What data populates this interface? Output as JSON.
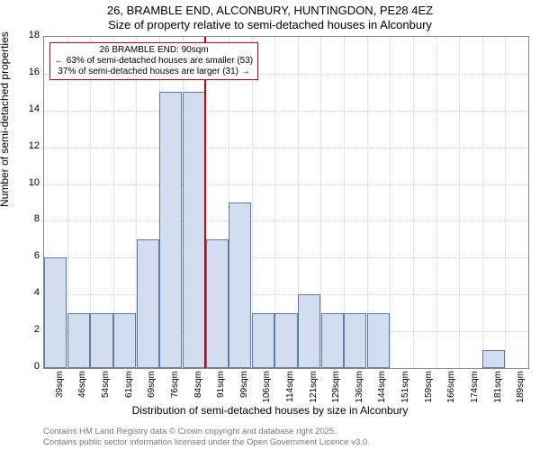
{
  "chart": {
    "type": "histogram",
    "title_main": "26, BRAMBLE END, ALCONBURY, HUNTINGDON, PE28 4EZ",
    "title_sub": "Size of property relative to semi-detached houses in Alconbury",
    "y_axis_label": "Number of semi-detached properties",
    "x_axis_label": "Distribution of semi-detached houses by size in Alconbury",
    "background_color": "#ffffff",
    "grid_color": "#cccccc",
    "bar_fill_color": "#d2ddef",
    "bar_border_color": "#5b7aa8",
    "marker_line_color": "#cc0000",
    "annotation_border_color": "#cc0000",
    "y_ticks": [
      0,
      2,
      4,
      6,
      8,
      10,
      12,
      14,
      16,
      18
    ],
    "y_max": 18,
    "x_categories": [
      "39sqm",
      "46sqm",
      "54sqm",
      "61sqm",
      "69sqm",
      "76sqm",
      "84sqm",
      "91sqm",
      "99sqm",
      "106sqm",
      "114sqm",
      "121sqm",
      "129sqm",
      "136sqm",
      "144sqm",
      "151sqm",
      "159sqm",
      "166sqm",
      "174sqm",
      "181sqm",
      "189sqm"
    ],
    "bar_values": [
      6,
      3,
      3,
      3,
      7,
      15,
      15,
      7,
      9,
      3,
      3,
      4,
      3,
      3,
      3,
      0,
      0,
      0,
      0,
      1,
      0
    ],
    "marker_bin_index": 7,
    "annotation": {
      "line1": "26 BRAMBLE END: 90sqm",
      "line2": "← 63% of semi-detached houses are smaller (53)",
      "line3": "37% of semi-detached houses are larger (31) →"
    },
    "attribution1": "Contains HM Land Registry data © Crown copyright and database right 2025.",
    "attribution2": "Contains public sector information licensed under the Open Government Licence v3.0."
  }
}
